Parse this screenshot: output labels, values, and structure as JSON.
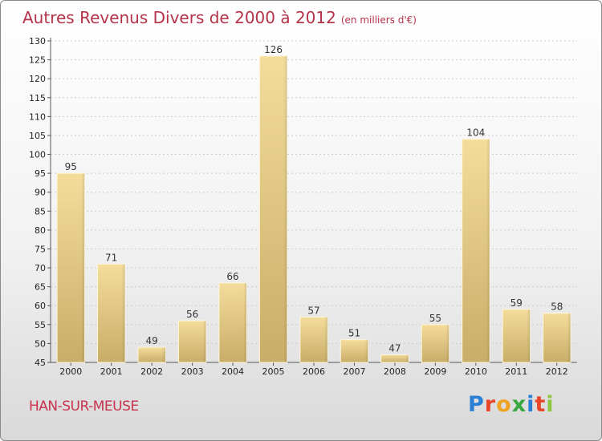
{
  "title": "Autres Revenus Divers de 2000 à 2012",
  "unit": "(en milliers d'€)",
  "location": "HAN-SUR-MEUSE",
  "brand": "Proxiti",
  "colors": {
    "title": "#b5334a",
    "bar_light": "#f4dc9b",
    "bar_dark": "#c8ad67",
    "grid": "#cccccc",
    "logo": [
      "#2a7fd4",
      "#e8462a",
      "#f0a321",
      "#3aa640",
      "#2a7fd4",
      "#e8462a",
      "#8dc63f"
    ]
  },
  "chart_data": {
    "type": "bar",
    "title": "Autres Revenus Divers de 2000 à 2012",
    "categories": [
      "2000",
      "2001",
      "2002",
      "2003",
      "2004",
      "2005",
      "2006",
      "2007",
      "2008",
      "2009",
      "2010",
      "2011",
      "2012"
    ],
    "values": [
      95,
      71,
      49,
      56,
      66,
      126,
      57,
      51,
      47,
      55,
      104,
      59,
      58
    ],
    "ylim": [
      45,
      130
    ],
    "yticks": [
      45,
      50,
      55,
      60,
      65,
      70,
      75,
      80,
      85,
      90,
      95,
      100,
      105,
      110,
      115,
      120,
      125,
      130
    ],
    "grid": true,
    "xlabel": "",
    "ylabel": ""
  }
}
